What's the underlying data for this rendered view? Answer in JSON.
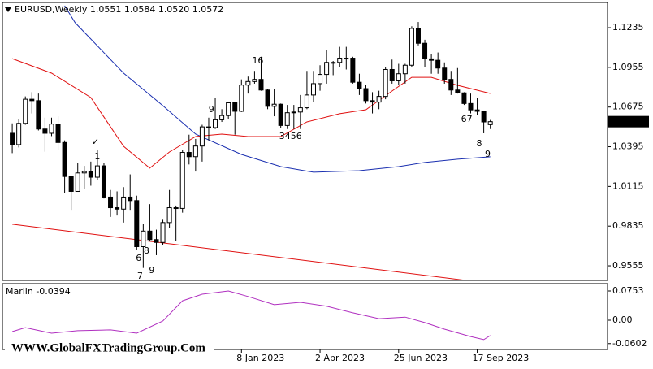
{
  "chart_data": [
    {
      "type": "candlestick",
      "title": "EURUSD,Weekly  1.0551 1.0584 1.0520 1.0572",
      "xlim": [
        -1.5,
        90.9
      ],
      "xticks": [
        {
          "value": 35,
          "label": "8 Jan 2023"
        },
        {
          "value": 47,
          "label": "2 Apr 2023"
        },
        {
          "value": 59,
          "label": "25 Jun 2023"
        },
        {
          "value": 71,
          "label": "17 Sep 2023"
        }
      ],
      "ylim": [
        0.9452,
        1.1413
      ],
      "yticks": [
        1.1235,
        1.0955,
        1.0675,
        1.0395,
        1.0115,
        0.9835,
        0.9555
      ],
      "up_color": "#ffffff",
      "down_color": "#000000",
      "wick_color": "#000000",
      "candles": [
        [
          1.049,
          1.056,
          1.035,
          1.041
        ],
        [
          1.041,
          1.059,
          1.039,
          1.056
        ],
        [
          1.056,
          1.075,
          1.055,
          1.073
        ],
        [
          1.073,
          1.078,
          1.063,
          1.072
        ],
        [
          1.072,
          1.077,
          1.051,
          1.052
        ],
        [
          1.052,
          1.06,
          1.036,
          1.049
        ],
        [
          1.049,
          1.06,
          1.047,
          1.0555
        ],
        [
          1.0555,
          1.061,
          1.037,
          1.0425
        ],
        [
          1.0425,
          1.044,
          1.007,
          1.0185
        ],
        [
          1.0185,
          1.019,
          0.995,
          1.008
        ],
        [
          1.008,
          1.028,
          1.008,
          1.021
        ],
        [
          1.021,
          1.026,
          1.01,
          1.022
        ],
        [
          1.022,
          1.029,
          1.012,
          1.018
        ],
        [
          1.018,
          1.037,
          1.016,
          1.026
        ],
        [
          1.026,
          1.028,
          1.003,
          1.004
        ],
        [
          1.004,
          1.009,
          0.99,
          0.9965
        ],
        [
          0.9965,
          1.008,
          0.991,
          0.9955
        ],
        [
          0.9955,
          1.011,
          0.986,
          1.004
        ],
        [
          1.004,
          1.02,
          0.995,
          1.0015
        ],
        [
          1.0015,
          1.005,
          0.967,
          0.969
        ],
        [
          0.969,
          0.985,
          0.954,
          0.98
        ],
        [
          0.98,
          0.999,
          0.973,
          0.974
        ],
        [
          0.974,
          0.981,
          0.963,
          0.972
        ],
        [
          0.972,
          0.988,
          0.97,
          0.986
        ],
        [
          0.986,
          1.009,
          0.982,
          0.9965
        ],
        [
          0.9965,
          0.998,
          0.973,
          0.996
        ],
        [
          0.996,
          1.037,
          0.993,
          1.0355
        ],
        [
          1.0355,
          1.048,
          1.027,
          1.0325
        ],
        [
          1.0325,
          1.045,
          1.022,
          1.04
        ],
        [
          1.04,
          1.055,
          1.029,
          1.0535
        ],
        [
          1.0535,
          1.06,
          1.044,
          1.053
        ],
        [
          1.053,
          1.074,
          1.052,
          1.0585
        ],
        [
          1.0585,
          1.066,
          1.057,
          1.0615
        ],
        [
          1.0615,
          1.071,
          1.059,
          1.0705
        ],
        [
          1.0705,
          1.071,
          1.048,
          1.0645
        ],
        [
          1.0645,
          1.087,
          1.064,
          1.083
        ],
        [
          1.083,
          1.089,
          1.077,
          1.0855
        ],
        [
          1.0855,
          1.093,
          1.084,
          1.087
        ],
        [
          1.087,
          1.103,
          1.079,
          1.0795
        ],
        [
          1.0795,
          1.08,
          1.066,
          1.068
        ],
        [
          1.068,
          1.08,
          1.061,
          1.0695
        ],
        [
          1.0695,
          1.07,
          1.053,
          1.0545
        ],
        [
          1.0545,
          1.069,
          1.052,
          1.0635
        ],
        [
          1.0635,
          1.069,
          1.052,
          1.064
        ],
        [
          1.064,
          1.076,
          1.052,
          1.067
        ],
        [
          1.067,
          1.093,
          1.066,
          1.076
        ],
        [
          1.076,
          1.093,
          1.071,
          1.084
        ],
        [
          1.084,
          1.097,
          1.079,
          1.0905
        ],
        [
          1.0905,
          1.108,
          1.084,
          1.099
        ],
        [
          1.099,
          1.1,
          1.09,
          1.099
        ],
        [
          1.099,
          1.11,
          1.096,
          1.102
        ],
        [
          1.102,
          1.11,
          1.094,
          1.102
        ],
        [
          1.102,
          1.103,
          1.084,
          1.085
        ],
        [
          1.085,
          1.091,
          1.076,
          1.0805
        ],
        [
          1.0805,
          1.083,
          1.07,
          1.072
        ],
        [
          1.072,
          1.078,
          1.063,
          1.071
        ],
        [
          1.071,
          1.079,
          1.066,
          1.075
        ],
        [
          1.075,
          1.096,
          1.073,
          1.094
        ],
        [
          1.094,
          1.101,
          1.084,
          1.086
        ],
        [
          1.086,
          1.098,
          1.083,
          1.091
        ],
        [
          1.091,
          1.098,
          1.084,
          1.097
        ],
        [
          1.097,
          1.1245,
          1.096,
          1.123
        ],
        [
          1.123,
          1.1275,
          1.111,
          1.1125
        ],
        [
          1.1125,
          1.115,
          1.096,
          1.1015
        ],
        [
          1.1015,
          1.105,
          1.091,
          1.1005
        ],
        [
          1.1005,
          1.106,
          1.091,
          1.095
        ],
        [
          1.095,
          1.099,
          1.084,
          1.087
        ],
        [
          1.087,
          1.093,
          1.076,
          1.0795
        ],
        [
          1.0795,
          1.095,
          1.077,
          1.0775
        ],
        [
          1.0775,
          1.078,
          1.069,
          1.07
        ],
        [
          1.07,
          1.077,
          1.063,
          1.0655
        ],
        [
          1.0655,
          1.074,
          1.062,
          1.0645
        ],
        [
          1.0645,
          1.065,
          1.049,
          1.057
        ],
        [
          1.0551,
          1.0584,
          1.052,
          1.0572
        ]
      ],
      "series": [
        {
          "color": "#1a2fb0",
          "x": [
            8,
            9.6,
            17,
            23,
            28,
            35,
            41,
            46,
            53,
            59,
            63,
            68,
            73
          ],
          "values": [
            1.139,
            1.127,
            1.0914,
            1.0685,
            1.0484,
            1.0341,
            1.0255,
            1.0215,
            1.0226,
            1.0255,
            1.0284,
            1.0307,
            1.0324
          ]
        },
        {
          "color": "#e01010",
          "x": [
            0,
            6,
            12,
            17,
            21,
            24,
            28,
            32,
            36,
            41,
            45,
            50,
            54,
            58,
            61,
            64,
            68,
            73
          ],
          "values": [
            1.1017,
            1.0914,
            1.0742,
            1.0398,
            1.0244,
            1.0358,
            1.0467,
            1.0484,
            1.0467,
            1.0467,
            1.057,
            1.0628,
            1.0656,
            1.0788,
            1.0885,
            1.0885,
            1.0828,
            1.0771
          ]
        },
        {
          "color": "#e01010",
          "x": [
            0,
            71
          ],
          "values": [
            0.9848,
            0.9442
          ]
        }
      ],
      "annotations": [
        {
          "text": "9",
          "x": 21.3,
          "y": 0.952,
          "color": "#e01010",
          "size": 24
        },
        {
          "text": "7",
          "x": 19.5,
          "y": 0.948,
          "color": "#e01010",
          "size": 13
        },
        {
          "text": "6",
          "x": 19.3,
          "y": 0.9607,
          "color": "#e01010",
          "size": 13
        },
        {
          "text": "8",
          "x": 20.5,
          "y": 0.9657,
          "color": "#e01010",
          "size": 13
        },
        {
          "text": "9",
          "x": 72.6,
          "y": 1.0341,
          "color": "#e01010",
          "size": 24
        },
        {
          "text": "8",
          "x": 71.3,
          "y": 1.0415,
          "color": "#e01010",
          "size": 13
        },
        {
          "text": "67",
          "x": 69.4,
          "y": 1.0587,
          "color": "#e01010",
          "size": 13
        },
        {
          "text": "9",
          "x": 30.4,
          "y": 1.0656,
          "color": "#4a78d0",
          "size": 24
        },
        {
          "text": "✓",
          "x": 12.7,
          "y": 1.0427,
          "color": "#e01010",
          "size": 16
        },
        {
          "text": "1",
          "x": 13,
          "y": 1.0324,
          "color": "#4a78d0",
          "size": 13
        },
        {
          "text": "16",
          "x": 37.5,
          "y": 1.1,
          "color": "#4a78d0",
          "size": 13
        },
        {
          "text": "3456",
          "x": 42.5,
          "y": 1.0467,
          "color": "#e01010",
          "size": 13
        }
      ]
    },
    {
      "type": "line",
      "label": "Marlin -0.0394",
      "ylim": [
        -0.0753,
        0.0941
      ],
      "yticks": [
        0.0753,
        {
          "value": 0,
          "label": "0.00"
        },
        -0.0602
      ],
      "series": [
        {
          "color": "#b030c0",
          "x": [
            0,
            2,
            6,
            10,
            15,
            19,
            23,
            26,
            29,
            33,
            36,
            40,
            44,
            48,
            52,
            56,
            60,
            63,
            66,
            70,
            72,
            73
          ],
          "values": [
            -0.0293,
            -0.019,
            -0.0335,
            -0.027,
            -0.025,
            -0.0335,
            -0.002,
            0.05,
            0.067,
            0.0753,
            0.061,
            0.04,
            0.046,
            0.036,
            0.019,
            0.004,
            0.008,
            -0.006,
            -0.023,
            -0.042,
            -0.05,
            -0.0394
          ]
        }
      ]
    }
  ],
  "watermark": "WWW.GlobalFXTradingGroup.Com"
}
